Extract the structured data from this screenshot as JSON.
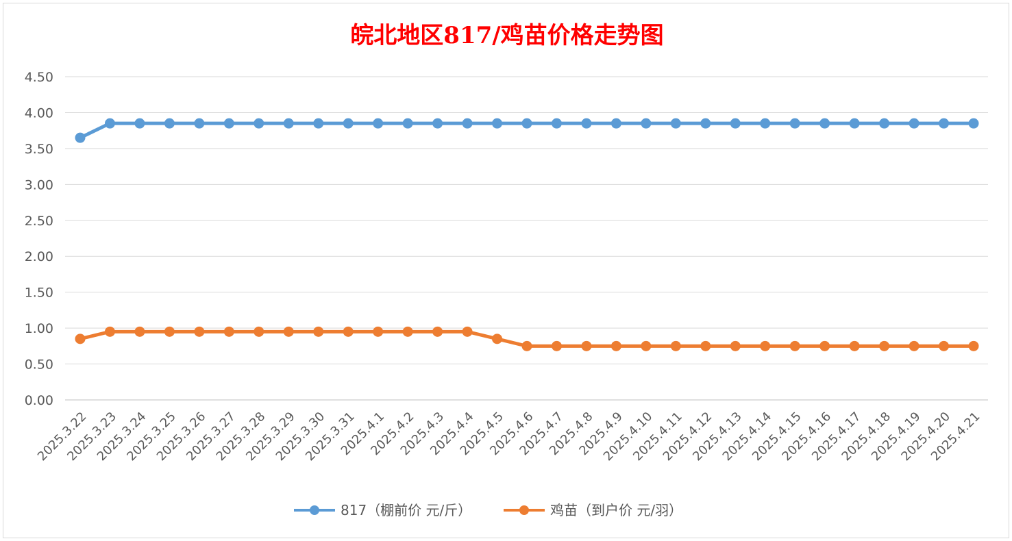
{
  "chart_data": {
    "type": "line",
    "title": "皖北地区817/鸡苗价格走势图",
    "categories": [
      "2025.3.22",
      "2025.3.23",
      "2025.3.24",
      "2025.3.25",
      "2025.3.26",
      "2025.3.27",
      "2025.3.28",
      "2025.3.29",
      "2025.3.30",
      "2025.3.31",
      "2025.4.1",
      "2025.4.2",
      "2025.4.3",
      "2025.4.4",
      "2025.4.5",
      "2025.4.6",
      "2025.4.7",
      "2025.4.8",
      "2025.4.9",
      "2025.4.10",
      "2025.4.11",
      "2025.4.12",
      "2025.4.13",
      "2025.4.14",
      "2025.4.15",
      "2025.4.16",
      "2025.4.17",
      "2025.4.18",
      "2025.4.19",
      "2025.4.20",
      "2025.4.21"
    ],
    "series": [
      {
        "name": "817（棚前价 元/斤）",
        "color": "#5b9bd5",
        "values": [
          3.65,
          3.85,
          3.85,
          3.85,
          3.85,
          3.85,
          3.85,
          3.85,
          3.85,
          3.85,
          3.85,
          3.85,
          3.85,
          3.85,
          3.85,
          3.85,
          3.85,
          3.85,
          3.85,
          3.85,
          3.85,
          3.85,
          3.85,
          3.85,
          3.85,
          3.85,
          3.85,
          3.85,
          3.85,
          3.85,
          3.85
        ]
      },
      {
        "name": "鸡苗（到户价 元/羽）",
        "color": "#ed7d31",
        "values": [
          0.85,
          0.95,
          0.95,
          0.95,
          0.95,
          0.95,
          0.95,
          0.95,
          0.95,
          0.95,
          0.95,
          0.95,
          0.95,
          0.95,
          0.85,
          0.75,
          0.75,
          0.75,
          0.75,
          0.75,
          0.75,
          0.75,
          0.75,
          0.75,
          0.75,
          0.75,
          0.75,
          0.75,
          0.75,
          0.75,
          0.75
        ]
      }
    ],
    "y_ticks": [
      "0.00",
      "0.50",
      "1.00",
      "1.50",
      "2.00",
      "2.50",
      "3.00",
      "3.50",
      "4.00",
      "4.50"
    ],
    "ylim": [
      0,
      4.5
    ],
    "grid": true,
    "legend_position": "bottom"
  }
}
